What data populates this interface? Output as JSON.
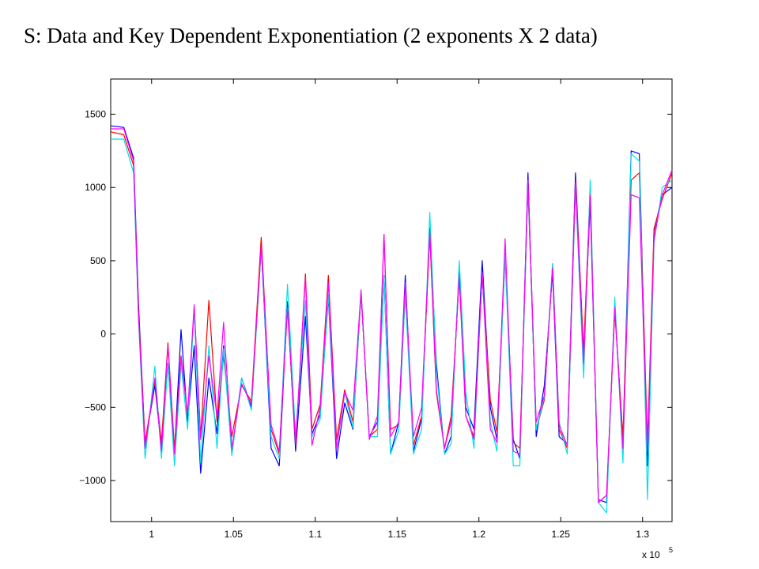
{
  "slide": {
    "title": "S: Data and Key Dependent Exponentiation (2 exponents X 2 data)"
  },
  "chart_data": {
    "type": "line",
    "title": "",
    "xlabel": "",
    "ylabel": "",
    "x_exponent_label": "x 10",
    "x_exponent_power": "5",
    "xlim": [
      97500,
      131800
    ],
    "ylim": [
      -1280,
      1740
    ],
    "x_ticks": [
      100000,
      105000,
      110000,
      115000,
      120000,
      125000,
      130000
    ],
    "x_tick_labels": [
      "1",
      "1.05",
      "1.1",
      "1.15",
      "1.2",
      "1.25",
      "1.3"
    ],
    "y_ticks": [
      -1000,
      -500,
      0,
      500,
      1000,
      1500
    ],
    "y_tick_labels": [
      "−1000",
      "−500",
      "0",
      "500",
      "1000",
      "1500"
    ],
    "grid": false,
    "legend": "none",
    "series": [
      {
        "color": "#0000ff",
        "x": [
          97500,
          98300,
          98900,
          99200,
          99600,
          100200,
          100600,
          101000,
          101400,
          101800,
          102200,
          102600,
          103000,
          103500,
          104000,
          104400,
          104900,
          105500,
          106100,
          106700,
          107300,
          107800,
          108300,
          108800,
          109400,
          109800,
          110300,
          110800,
          111300,
          111800,
          112300,
          112800,
          113300,
          113800,
          114200,
          114600,
          115100,
          115500,
          116000,
          116500,
          117000,
          117400,
          117900,
          118300,
          118800,
          119200,
          119700,
          120200,
          120700,
          121100,
          121600,
          122100,
          122500,
          123000,
          123500,
          124000,
          124500,
          124900,
          125400,
          125900,
          126400,
          126800,
          127300,
          127800,
          128300,
          128800,
          129300,
          129800,
          130300,
          130700,
          131200,
          131800
        ],
        "y": [
          1420,
          1410,
          1200,
          200,
          -750,
          -350,
          -780,
          -200,
          -800,
          30,
          -600,
          -80,
          -950,
          -300,
          -680,
          -80,
          -820,
          -300,
          -500,
          600,
          -780,
          -900,
          220,
          -800,
          120,
          -680,
          -550,
          250,
          -850,
          -470,
          -650,
          280,
          -700,
          -600,
          400,
          -820,
          -600,
          400,
          -800,
          -580,
          720,
          -200,
          -820,
          -700,
          470,
          -500,
          -650,
          500,
          -500,
          -720,
          550,
          -720,
          -850,
          1100,
          -700,
          -350,
          420,
          -700,
          -750,
          1100,
          -150,
          900,
          -1130,
          -1150,
          200,
          -750,
          1250,
          1230,
          -900,
          700,
          950,
          1000
        ],
        "marker": "none"
      },
      {
        "color": "#ff0000",
        "x": [
          97500,
          98300,
          98900,
          99200,
          99600,
          100200,
          100600,
          101000,
          101400,
          101800,
          102200,
          102600,
          103000,
          103500,
          104000,
          104400,
          104900,
          105500,
          106100,
          106700,
          107300,
          107800,
          108300,
          108800,
          109400,
          109800,
          110300,
          110800,
          111300,
          111800,
          112300,
          112800,
          113300,
          113800,
          114200,
          114600,
          115100,
          115500,
          116000,
          116500,
          117000,
          117400,
          117900,
          118300,
          118800,
          119200,
          119700,
          120200,
          120700,
          121100,
          121600,
          122100,
          122500,
          123000,
          123500,
          124000,
          124500,
          124900,
          125400,
          125900,
          126400,
          126800,
          127300,
          127800,
          128300,
          128800,
          129300,
          129800,
          130300,
          130700,
          131200,
          131800
        ],
        "y": [
          1380,
          1360,
          1150,
          150,
          -740,
          -320,
          -740,
          -60,
          -780,
          -150,
          -560,
          180,
          -700,
          230,
          -600,
          -150,
          -700,
          -350,
          -460,
          660,
          -650,
          -820,
          180,
          -760,
          410,
          -650,
          -480,
          400,
          -720,
          -380,
          -600,
          280,
          -700,
          -650,
          680,
          -650,
          -620,
          280,
          -760,
          -560,
          680,
          -400,
          -780,
          -560,
          380,
          -560,
          -700,
          400,
          -450,
          -670,
          520,
          -740,
          -780,
          1000,
          -650,
          -450,
          480,
          -650,
          -780,
          1050,
          -120,
          1000,
          -1150,
          -1100,
          150,
          -700,
          1050,
          1100,
          -750,
          720,
          920,
          1100
        ],
        "marker": "none"
      },
      {
        "color": "#00e0e8",
        "x": [
          97500,
          98300,
          98900,
          99200,
          99600,
          100200,
          100600,
          101000,
          101400,
          101800,
          102200,
          102600,
          103000,
          103500,
          104000,
          104400,
          104900,
          105500,
          106100,
          106700,
          107300,
          107800,
          108300,
          108800,
          109400,
          109800,
          110300,
          110800,
          111300,
          111800,
          112300,
          112800,
          113300,
          113800,
          114200,
          114600,
          115100,
          115500,
          116000,
          116500,
          117000,
          117400,
          117900,
          118300,
          118800,
          119200,
          119700,
          120200,
          120700,
          121100,
          121600,
          122100,
          122500,
          123000,
          123500,
          124000,
          124500,
          124900,
          125400,
          125900,
          126400,
          126800,
          127300,
          127800,
          128300,
          128800,
          129300,
          129800,
          130300,
          130700,
          131200,
          131800
        ],
        "y": [
          1330,
          1330,
          1100,
          100,
          -850,
          -220,
          -850,
          -200,
          -900,
          -200,
          -650,
          170,
          -880,
          -80,
          -780,
          -100,
          -830,
          -300,
          -520,
          580,
          -700,
          -850,
          340,
          -700,
          230,
          -700,
          -580,
          270,
          -780,
          -400,
          -640,
          300,
          -700,
          -700,
          400,
          -820,
          -660,
          280,
          -820,
          -650,
          830,
          -250,
          -820,
          -750,
          500,
          -400,
          -780,
          420,
          -600,
          -800,
          540,
          -900,
          -900,
          1020,
          -650,
          -430,
          480,
          -600,
          -820,
          1000,
          -300,
          1050,
          -1150,
          -1220,
          250,
          -880,
          1230,
          1180,
          -1130,
          620,
          1000,
          1050
        ],
        "marker": "none"
      },
      {
        "color": "#ff00ff",
        "x": [
          97500,
          98300,
          98900,
          99200,
          99600,
          100200,
          100600,
          101000,
          101400,
          101800,
          102200,
          102600,
          103000,
          103500,
          104000,
          104400,
          104900,
          105500,
          106100,
          106700,
          107300,
          107800,
          108300,
          108800,
          109400,
          109800,
          110300,
          110800,
          111300,
          111800,
          112300,
          112800,
          113300,
          113800,
          114200,
          114600,
          115100,
          115500,
          116000,
          116500,
          117000,
          117400,
          117900,
          118300,
          118800,
          119200,
          119700,
          120200,
          120700,
          121100,
          121600,
          122100,
          122500,
          123000,
          123500,
          124000,
          124500,
          124900,
          125400,
          125900,
          126400,
          126800,
          127300,
          127800,
          128300,
          128800,
          129300,
          129800,
          130300,
          130700,
          131200,
          131800
        ],
        "y": [
          1400,
          1400,
          1180,
          120,
          -780,
          -300,
          -800,
          -80,
          -820,
          -160,
          -540,
          200,
          -720,
          -150,
          -560,
          80,
          -780,
          -340,
          -480,
          600,
          -620,
          -800,
          180,
          -740,
          380,
          -760,
          -500,
          350,
          -780,
          -400,
          -520,
          300,
          -720,
          -560,
          680,
          -700,
          -600,
          350,
          -700,
          -500,
          700,
          -380,
          -780,
          -600,
          400,
          -560,
          -720,
          420,
          -650,
          -740,
          650,
          -800,
          -820,
          1050,
          -600,
          -420,
          450,
          -620,
          -760,
          1030,
          -200,
          950,
          -1150,
          -1100,
          180,
          -780,
          950,
          930,
          -800,
          650,
          950,
          1120
        ],
        "marker": "none"
      }
    ]
  }
}
